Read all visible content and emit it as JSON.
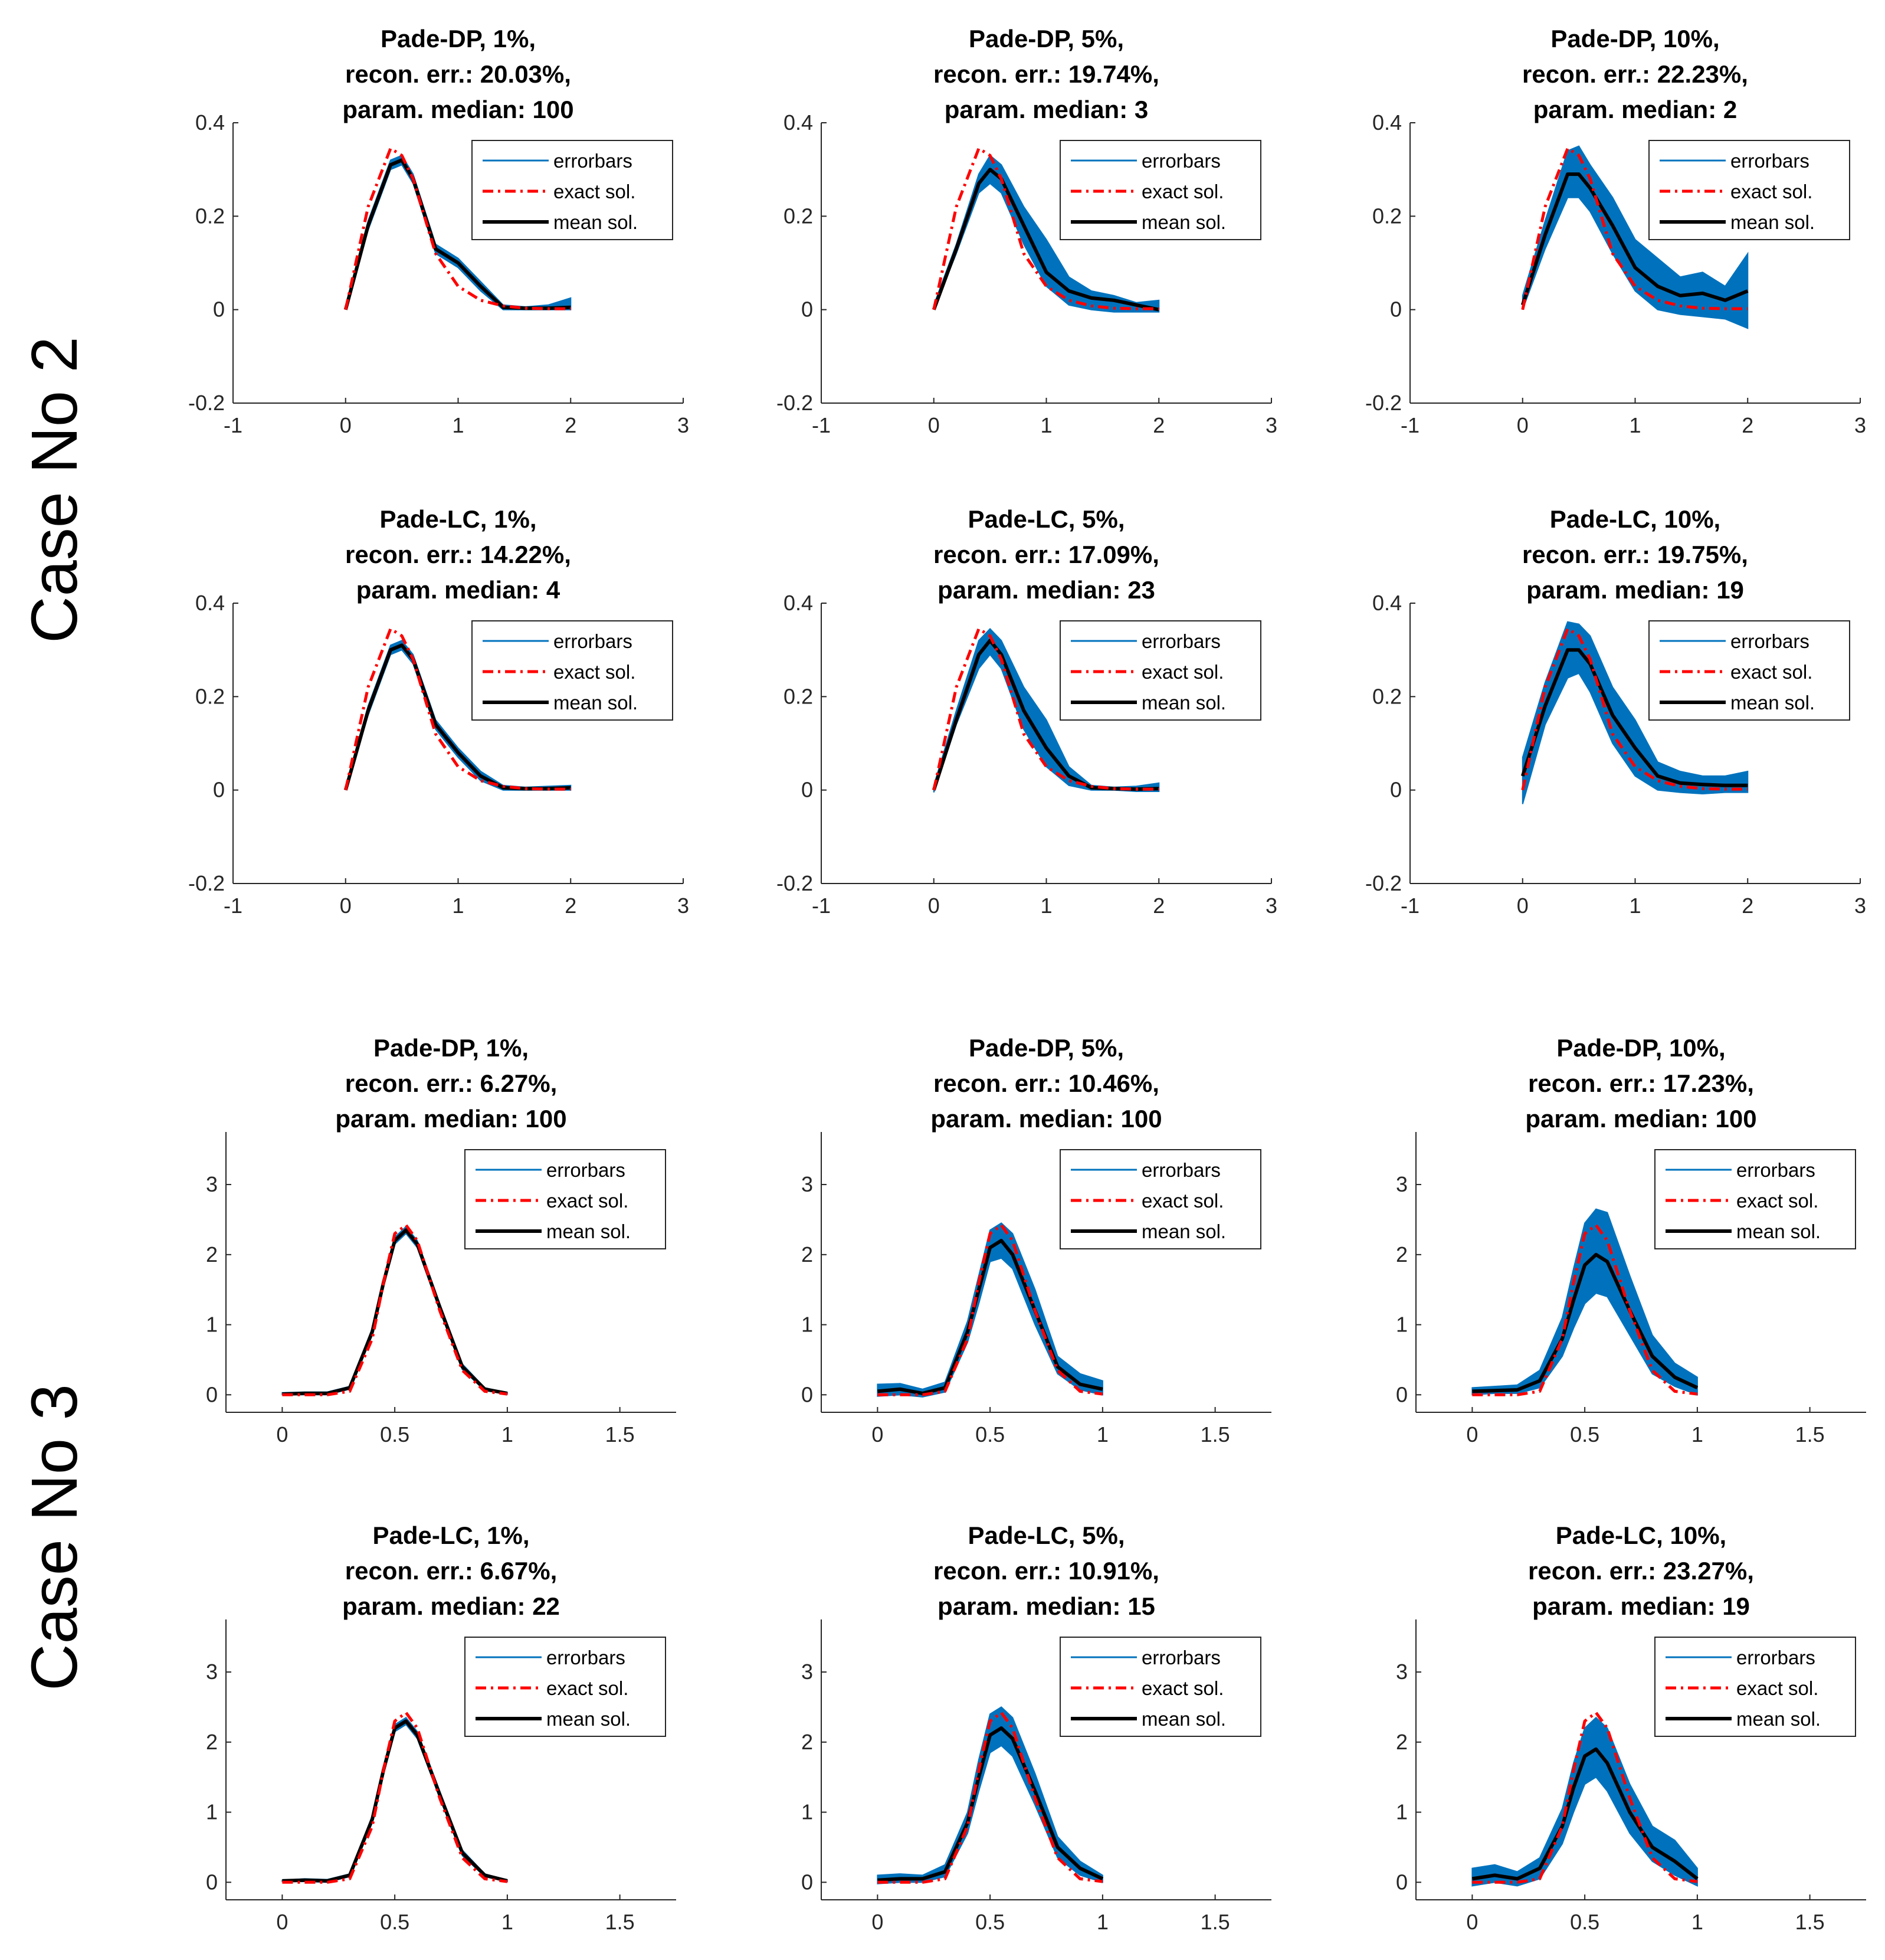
{
  "case_labels": [
    "Case No 2",
    "Case No 3"
  ],
  "legend": {
    "errorbars": "errorbars",
    "exact": "exact sol.",
    "mean": "mean sol."
  },
  "colors": {
    "band": "#0072BD",
    "exact": "#FF0000",
    "mean": "#000000",
    "axis": "#262626"
  },
  "chart_data": [
    {
      "type": "area",
      "case": "Case No 2",
      "method": "Pade-DP",
      "noise": "1%",
      "title": [
        "Pade-DP, 1%,",
        "recon. err.: 20.03%,",
        "param. median: 100"
      ],
      "xlim": [
        -1,
        3
      ],
      "ylim": [
        -0.2,
        0.4
      ],
      "xticks": [
        "-1",
        "0",
        "1",
        "2",
        "3"
      ],
      "yticks": [
        "-0.2",
        "0",
        "0.2",
        "0.4"
      ],
      "x": [
        0,
        0.2,
        0.4,
        0.5,
        0.6,
        0.8,
        1.0,
        1.2,
        1.4,
        1.6,
        1.8,
        2.0
      ],
      "exact": [
        0,
        0.22,
        0.345,
        0.33,
        0.28,
        0.12,
        0.05,
        0.02,
        0.008,
        0.003,
        0.002,
        0.002
      ],
      "mean": [
        0,
        0.18,
        0.31,
        0.32,
        0.28,
        0.13,
        0.1,
        0.05,
        0.005,
        0.003,
        0.003,
        0.005
      ],
      "lower": [
        0,
        0.17,
        0.3,
        0.31,
        0.27,
        0.12,
        0.09,
        0.04,
        0,
        0,
        0,
        0
      ],
      "upper": [
        0.005,
        0.19,
        0.32,
        0.33,
        0.29,
        0.14,
        0.11,
        0.06,
        0.01,
        0.006,
        0.01,
        0.025
      ]
    },
    {
      "type": "area",
      "case": "Case No 2",
      "method": "Pade-DP",
      "noise": "5%",
      "title": [
        "Pade-DP, 5%,",
        "recon. err.: 19.74%,",
        "param. median: 3"
      ],
      "xlim": [
        -1,
        3
      ],
      "ylim": [
        -0.2,
        0.4
      ],
      "xticks": [
        "-1",
        "0",
        "1",
        "2",
        "3"
      ],
      "yticks": [
        "-0.2",
        "0",
        "0.2",
        "0.4"
      ],
      "x": [
        0,
        0.2,
        0.4,
        0.5,
        0.6,
        0.8,
        1.0,
        1.2,
        1.4,
        1.6,
        1.8,
        2.0
      ],
      "exact": [
        0,
        0.22,
        0.345,
        0.33,
        0.28,
        0.12,
        0.05,
        0.02,
        0.008,
        0.003,
        0.002,
        0.002
      ],
      "mean": [
        0,
        0.13,
        0.27,
        0.3,
        0.28,
        0.18,
        0.08,
        0.04,
        0.025,
        0.02,
        0.01,
        0
      ],
      "lower": [
        0,
        0.12,
        0.25,
        0.27,
        0.25,
        0.14,
        0.05,
        0.01,
        0,
        -0.005,
        -0.005,
        -0.005
      ],
      "upper": [
        0.01,
        0.14,
        0.29,
        0.33,
        0.31,
        0.22,
        0.15,
        0.07,
        0.04,
        0.03,
        0.015,
        0.02
      ]
    },
    {
      "type": "area",
      "case": "Case No 2",
      "method": "Pade-DP",
      "noise": "10%",
      "title": [
        "Pade-DP, 10%,",
        "recon. err.: 22.23%,",
        "param. median: 2"
      ],
      "xlim": [
        -1,
        3
      ],
      "ylim": [
        -0.2,
        0.4
      ],
      "xticks": [
        "-1",
        "0",
        "1",
        "2",
        "3"
      ],
      "yticks": [
        "-0.2",
        "0",
        "0.2",
        "0.4"
      ],
      "x": [
        0,
        0.2,
        0.4,
        0.5,
        0.6,
        0.8,
        1.0,
        1.2,
        1.4,
        1.6,
        1.8,
        2.0
      ],
      "exact": [
        0,
        0.22,
        0.345,
        0.33,
        0.28,
        0.12,
        0.05,
        0.02,
        0.008,
        0.003,
        0.002,
        0.002
      ],
      "mean": [
        0.01,
        0.16,
        0.29,
        0.29,
        0.26,
        0.18,
        0.09,
        0.05,
        0.03,
        0.035,
        0.02,
        0.04
      ],
      "lower": [
        0,
        0.13,
        0.24,
        0.24,
        0.21,
        0.12,
        0.04,
        0,
        -0.01,
        -0.015,
        -0.02,
        -0.04
      ],
      "upper": [
        0.03,
        0.19,
        0.34,
        0.35,
        0.31,
        0.24,
        0.15,
        0.11,
        0.07,
        0.08,
        0.05,
        0.12
      ]
    },
    {
      "type": "area",
      "case": "Case No 2",
      "method": "Pade-LC",
      "noise": "1%",
      "title": [
        "Pade-LC, 1%,",
        "recon. err.: 14.22%,",
        "param. median: 4"
      ],
      "xlim": [
        -1,
        3
      ],
      "ylim": [
        -0.2,
        0.4
      ],
      "xticks": [
        "-1",
        "0",
        "1",
        "2",
        "3"
      ],
      "yticks": [
        "-0.2",
        "0",
        "0.2",
        "0.4"
      ],
      "x": [
        0,
        0.2,
        0.4,
        0.5,
        0.6,
        0.8,
        1.0,
        1.2,
        1.4,
        1.6,
        1.8,
        2.0
      ],
      "exact": [
        0,
        0.22,
        0.345,
        0.33,
        0.28,
        0.12,
        0.05,
        0.02,
        0.008,
        0.003,
        0.002,
        0.002
      ],
      "mean": [
        0,
        0.17,
        0.3,
        0.31,
        0.28,
        0.14,
        0.08,
        0.03,
        0.005,
        0.003,
        0.003,
        0.005
      ],
      "lower": [
        0,
        0.16,
        0.29,
        0.3,
        0.27,
        0.13,
        0.07,
        0.02,
        0,
        0,
        0,
        0
      ],
      "upper": [
        0.005,
        0.18,
        0.31,
        0.32,
        0.29,
        0.15,
        0.09,
        0.04,
        0.01,
        0.006,
        0.008,
        0.01
      ]
    },
    {
      "type": "area",
      "case": "Case No 2",
      "method": "Pade-LC",
      "noise": "5%",
      "title": [
        "Pade-LC, 5%,",
        "recon. err.: 17.09%,",
        "param. median: 23"
      ],
      "xlim": [
        -1,
        3
      ],
      "ylim": [
        -0.2,
        0.4
      ],
      "xticks": [
        "-1",
        "0",
        "1",
        "2",
        "3"
      ],
      "yticks": [
        "-0.2",
        "0",
        "0.2",
        "0.4"
      ],
      "x": [
        0,
        0.2,
        0.4,
        0.5,
        0.6,
        0.8,
        1.0,
        1.2,
        1.4,
        1.6,
        1.8,
        2.0
      ],
      "exact": [
        0,
        0.22,
        0.345,
        0.33,
        0.28,
        0.12,
        0.05,
        0.02,
        0.008,
        0.003,
        0.002,
        0.002
      ],
      "mean": [
        0,
        0.15,
        0.29,
        0.32,
        0.29,
        0.17,
        0.09,
        0.03,
        0.005,
        0.003,
        0.002,
        0.003
      ],
      "lower": [
        -0.005,
        0.14,
        0.26,
        0.29,
        0.26,
        0.13,
        0.05,
        0.01,
        0,
        0,
        -0.003,
        -0.003
      ],
      "upper": [
        0.01,
        0.17,
        0.32,
        0.345,
        0.32,
        0.22,
        0.15,
        0.05,
        0.01,
        0.006,
        0.008,
        0.015
      ]
    },
    {
      "type": "area",
      "case": "Case No 2",
      "method": "Pade-LC",
      "noise": "10%",
      "title": [
        "Pade-LC, 10%,",
        "recon. err.: 19.75%,",
        "param. median: 19"
      ],
      "xlim": [
        -1,
        3
      ],
      "ylim": [
        -0.2,
        0.4
      ],
      "xticks": [
        "-1",
        "0",
        "1",
        "2",
        "3"
      ],
      "yticks": [
        "-0.2",
        "0",
        "0.2",
        "0.4"
      ],
      "x": [
        0,
        0.2,
        0.4,
        0.5,
        0.6,
        0.8,
        1.0,
        1.2,
        1.4,
        1.6,
        1.8,
        2.0
      ],
      "exact": [
        0,
        0.22,
        0.345,
        0.33,
        0.28,
        0.12,
        0.05,
        0.02,
        0.008,
        0.003,
        0.002,
        0.002
      ],
      "mean": [
        0.03,
        0.18,
        0.3,
        0.3,
        0.27,
        0.16,
        0.09,
        0.03,
        0.015,
        0.012,
        0.01,
        0.01
      ],
      "lower": [
        -0.03,
        0.14,
        0.24,
        0.25,
        0.21,
        0.1,
        0.03,
        0,
        -0.005,
        -0.008,
        -0.005,
        -0.005
      ],
      "upper": [
        0.07,
        0.23,
        0.36,
        0.355,
        0.33,
        0.22,
        0.15,
        0.06,
        0.04,
        0.03,
        0.03,
        0.04
      ]
    },
    {
      "type": "area",
      "case": "Case No 3",
      "method": "Pade-DP",
      "noise": "1%",
      "title": [
        "Pade-DP, 1%,",
        "recon. err.: 6.27%,",
        "param. median: 100"
      ],
      "xlim": [
        -0.25,
        1.75
      ],
      "ylim": [
        -0.25,
        3.75
      ],
      "xticks": [
        "0",
        "0.5",
        "1",
        "1.5"
      ],
      "xtickvals": [
        0,
        0.5,
        1,
        1.5
      ],
      "yticks": [
        "0",
        "1",
        "2",
        "3"
      ],
      "ytickvals": [
        0,
        1,
        2,
        3
      ],
      "x": [
        0,
        0.1,
        0.2,
        0.3,
        0.4,
        0.45,
        0.5,
        0.55,
        0.6,
        0.7,
        0.8,
        0.9,
        1.0
      ],
      "exact": [
        0,
        0,
        0,
        0.05,
        0.8,
        1.6,
        2.3,
        2.42,
        2.2,
        1.2,
        0.35,
        0.05,
        0.01
      ],
      "mean": [
        0.01,
        0.02,
        0.02,
        0.1,
        0.9,
        1.6,
        2.2,
        2.35,
        2.15,
        1.25,
        0.4,
        0.08,
        0.02
      ],
      "lower": [
        0,
        0,
        0,
        0.08,
        0.85,
        1.55,
        2.15,
        2.3,
        2.1,
        1.2,
        0.36,
        0.06,
        0.01
      ],
      "upper": [
        0.03,
        0.04,
        0.04,
        0.12,
        0.95,
        1.65,
        2.25,
        2.4,
        2.2,
        1.3,
        0.44,
        0.1,
        0.03
      ]
    },
    {
      "type": "area",
      "case": "Case No 3",
      "method": "Pade-DP",
      "noise": "5%",
      "title": [
        "Pade-DP, 5%,",
        "recon. err.: 10.46%,",
        "param. median: 100"
      ],
      "xlim": [
        -0.25,
        1.75
      ],
      "ylim": [
        -0.25,
        3.75
      ],
      "xticks": [
        "0",
        "0.5",
        "1",
        "1.5"
      ],
      "xtickvals": [
        0,
        0.5,
        1,
        1.5
      ],
      "yticks": [
        "0",
        "1",
        "2",
        "3"
      ],
      "ytickvals": [
        0,
        1,
        2,
        3
      ],
      "x": [
        0,
        0.1,
        0.2,
        0.3,
        0.4,
        0.45,
        0.5,
        0.55,
        0.6,
        0.7,
        0.8,
        0.9,
        1.0
      ],
      "exact": [
        0,
        0,
        0,
        0.05,
        0.8,
        1.6,
        2.3,
        2.42,
        2.2,
        1.2,
        0.35,
        0.05,
        0.01
      ],
      "mean": [
        0.05,
        0.08,
        0.02,
        0.1,
        0.9,
        1.5,
        2.1,
        2.2,
        2.0,
        1.2,
        0.4,
        0.15,
        0.08
      ],
      "lower": [
        -0.02,
        0,
        -0.03,
        0.04,
        0.75,
        1.3,
        1.9,
        1.95,
        1.8,
        1.0,
        0.3,
        0.07,
        0
      ],
      "upper": [
        0.15,
        0.16,
        0.08,
        0.18,
        1.05,
        1.7,
        2.35,
        2.45,
        2.3,
        1.5,
        0.55,
        0.3,
        0.2
      ]
    },
    {
      "type": "area",
      "case": "Case No 3",
      "method": "Pade-DP",
      "noise": "10%",
      "title": [
        "Pade-DP, 10%,",
        "recon. err.: 17.23%,",
        "param. median: 100"
      ],
      "xlim": [
        -0.25,
        1.75
      ],
      "ylim": [
        -0.25,
        3.75
      ],
      "xticks": [
        "0",
        "0.5",
        "1",
        "1.5"
      ],
      "xtickvals": [
        0,
        0.5,
        1,
        1.5
      ],
      "yticks": [
        "0",
        "1",
        "2",
        "3"
      ],
      "ytickvals": [
        0,
        1,
        2,
        3
      ],
      "x": [
        0,
        0.1,
        0.2,
        0.3,
        0.4,
        0.45,
        0.5,
        0.55,
        0.6,
        0.7,
        0.8,
        0.9,
        1.0
      ],
      "exact": [
        0,
        0,
        0,
        0.05,
        0.8,
        1.6,
        2.3,
        2.42,
        2.2,
        1.2,
        0.35,
        0.05,
        0.01
      ],
      "mean": [
        0.05,
        0.06,
        0.07,
        0.2,
        0.8,
        1.35,
        1.85,
        2.0,
        1.9,
        1.2,
        0.55,
        0.25,
        0.1
      ],
      "lower": [
        0,
        0.02,
        0.02,
        0.1,
        0.55,
        0.95,
        1.3,
        1.45,
        1.4,
        0.85,
        0.3,
        0.12,
        0
      ],
      "upper": [
        0.1,
        0.12,
        0.14,
        0.35,
        1.1,
        1.8,
        2.45,
        2.65,
        2.6,
        1.7,
        0.85,
        0.45,
        0.25
      ]
    },
    {
      "type": "area",
      "case": "Case No 3",
      "method": "Pade-LC",
      "noise": "1%",
      "title": [
        "Pade-LC, 1%,",
        "recon. err.: 6.67%,",
        "param. median: 22"
      ],
      "xlim": [
        -0.25,
        1.75
      ],
      "ylim": [
        -0.25,
        3.75
      ],
      "xticks": [
        "0",
        "0.5",
        "1",
        "1.5"
      ],
      "xtickvals": [
        0,
        0.5,
        1,
        1.5
      ],
      "yticks": [
        "0",
        "1",
        "2",
        "3"
      ],
      "ytickvals": [
        0,
        1,
        2,
        3
      ],
      "x": [
        0,
        0.1,
        0.2,
        0.3,
        0.4,
        0.45,
        0.5,
        0.55,
        0.6,
        0.7,
        0.8,
        0.9,
        1.0
      ],
      "exact": [
        0,
        0,
        0,
        0.05,
        0.8,
        1.6,
        2.3,
        2.42,
        2.2,
        1.2,
        0.35,
        0.05,
        0.01
      ],
      "mean": [
        0.02,
        0.03,
        0.02,
        0.1,
        0.9,
        1.6,
        2.2,
        2.3,
        2.1,
        1.25,
        0.42,
        0.1,
        0.02
      ],
      "lower": [
        0.01,
        0.01,
        0,
        0.08,
        0.85,
        1.55,
        2.15,
        2.25,
        2.05,
        1.2,
        0.38,
        0.08,
        0.01
      ],
      "upper": [
        0.03,
        0.05,
        0.04,
        0.12,
        0.95,
        1.65,
        2.25,
        2.35,
        2.15,
        1.3,
        0.46,
        0.12,
        0.03
      ]
    },
    {
      "type": "area",
      "case": "Case No 3",
      "method": "Pade-LC",
      "noise": "5%",
      "title": [
        "Pade-LC, 5%,",
        "recon. err.: 10.91%,",
        "param. median: 15"
      ],
      "xlim": [
        -0.25,
        1.75
      ],
      "ylim": [
        -0.25,
        3.75
      ],
      "xticks": [
        "0",
        "0.5",
        "1",
        "1.5"
      ],
      "xtickvals": [
        0,
        0.5,
        1,
        1.5
      ],
      "yticks": [
        "0",
        "1",
        "2",
        "3"
      ],
      "ytickvals": [
        0,
        1,
        2,
        3
      ],
      "x": [
        0,
        0.1,
        0.2,
        0.3,
        0.4,
        0.45,
        0.5,
        0.55,
        0.6,
        0.7,
        0.8,
        0.9,
        1.0
      ],
      "exact": [
        0,
        0,
        0,
        0.05,
        0.8,
        1.6,
        2.3,
        2.42,
        2.2,
        1.2,
        0.35,
        0.05,
        0.01
      ],
      "mean": [
        0.03,
        0.05,
        0.05,
        0.15,
        0.85,
        1.5,
        2.1,
        2.2,
        2.05,
        1.3,
        0.5,
        0.2,
        0.05
      ],
      "lower": [
        -0.02,
        0,
        0,
        0.08,
        0.7,
        1.3,
        1.85,
        1.95,
        1.8,
        1.1,
        0.35,
        0.1,
        0
      ],
      "upper": [
        0.1,
        0.12,
        0.1,
        0.25,
        1.0,
        1.75,
        2.4,
        2.5,
        2.35,
        1.55,
        0.65,
        0.3,
        0.1
      ]
    },
    {
      "type": "area",
      "case": "Case No 3",
      "method": "Pade-LC",
      "noise": "10%",
      "title": [
        "Pade-LC, 10%,",
        "recon. err.: 23.27%,",
        "param. median: 19"
      ],
      "xlim": [
        -0.25,
        1.75
      ],
      "ylim": [
        -0.25,
        3.75
      ],
      "xticks": [
        "0",
        "0.5",
        "1",
        "1.5"
      ],
      "xtickvals": [
        0,
        0.5,
        1,
        1.5
      ],
      "yticks": [
        "0",
        "1",
        "2",
        "3"
      ],
      "ytickvals": [
        0,
        1,
        2,
        3
      ],
      "x": [
        0,
        0.1,
        0.2,
        0.3,
        0.4,
        0.45,
        0.5,
        0.55,
        0.6,
        0.7,
        0.8,
        0.9,
        1.0
      ],
      "exact": [
        0,
        0,
        0,
        0.05,
        0.8,
        1.6,
        2.3,
        2.42,
        2.2,
        1.2,
        0.35,
        0.05,
        0.01
      ],
      "mean": [
        0.05,
        0.1,
        0.05,
        0.2,
        0.8,
        1.35,
        1.8,
        1.9,
        1.7,
        1.0,
        0.5,
        0.3,
        0.05
      ],
      "lower": [
        -0.05,
        0,
        -0.05,
        0.05,
        0.55,
        1.0,
        1.4,
        1.5,
        1.3,
        0.7,
        0.3,
        0.1,
        -0.05
      ],
      "upper": [
        0.2,
        0.25,
        0.15,
        0.35,
        1.05,
        1.7,
        2.2,
        2.35,
        2.2,
        1.4,
        0.8,
        0.6,
        0.2
      ]
    }
  ]
}
